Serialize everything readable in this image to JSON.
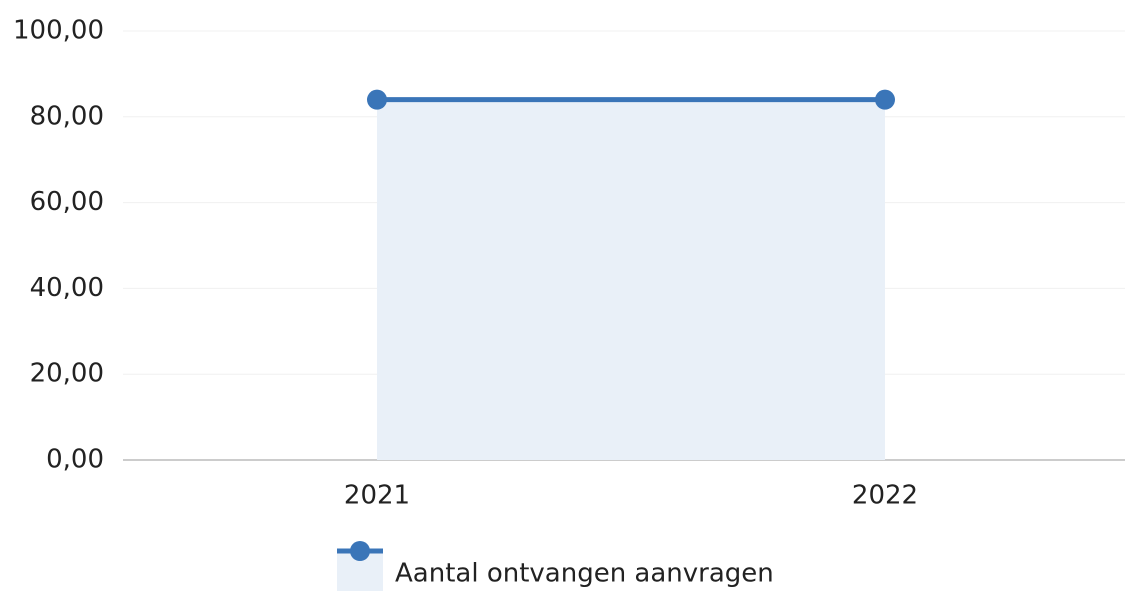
{
  "chart_data": {
    "type": "area",
    "categories": [
      "2021",
      "2022"
    ],
    "series": [
      {
        "name": "Aantal ontvangen aanvragen",
        "color": "#3a75b8",
        "fill": "#e9f0f8",
        "values": [
          84,
          84
        ]
      }
    ],
    "ylim": [
      0,
      100
    ],
    "yticks": [
      {
        "value": 0,
        "label": "0,00"
      },
      {
        "value": 20,
        "label": "20,00"
      },
      {
        "value": 40,
        "label": "40,00"
      },
      {
        "value": 60,
        "label": "60,00"
      },
      {
        "value": 80,
        "label": "80,00"
      },
      {
        "value": 100,
        "label": "100,00"
      }
    ],
    "grid": true,
    "legend": "bottom"
  }
}
